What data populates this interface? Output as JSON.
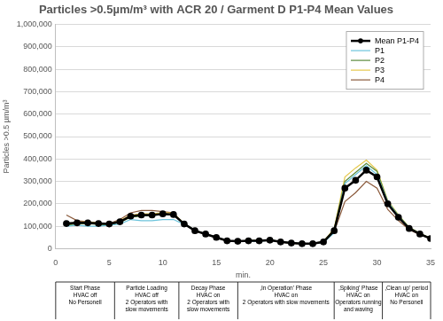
{
  "chart_data": {
    "type": "line",
    "title": "Particles >0.5µm/m³ with ACR 20 / Garment D P1-P4 Mean Values",
    "x_label": "min.",
    "y_label": "Particles >0.5 µm/m³",
    "x": [
      1,
      2,
      3,
      4,
      5,
      6,
      7,
      8,
      9,
      10,
      11,
      12,
      13,
      14,
      15,
      16,
      17,
      18,
      19,
      20,
      21,
      22,
      23,
      24,
      25,
      26,
      27,
      28,
      29,
      30,
      31,
      32,
      33,
      34,
      35
    ],
    "series": [
      {
        "name": "Mean P1-P4",
        "color": "#000000",
        "marker": "circle",
        "line_style": "solid",
        "values": [
          112000,
          115000,
          115000,
          112000,
          110000,
          120000,
          145000,
          150000,
          150000,
          155000,
          152000,
          110000,
          80000,
          65000,
          50000,
          35000,
          33000,
          35000,
          35000,
          38000,
          30000,
          25000,
          22000,
          22000,
          30000,
          80000,
          270000,
          305000,
          350000,
          320000,
          200000,
          140000,
          90000,
          65000,
          45000
        ]
      },
      {
        "name": "P1",
        "color": "#6cc4dc",
        "marker": "none",
        "line_style": "solid",
        "values": [
          100000,
          105000,
          100000,
          100000,
          105000,
          110000,
          130000,
          125000,
          125000,
          130000,
          130000,
          108000,
          80000,
          65000,
          50000,
          35000,
          32000,
          33000,
          33000,
          37000,
          30000,
          25000,
          22000,
          22000,
          28000,
          70000,
          290000,
          330000,
          370000,
          330000,
          210000,
          145000,
          92000,
          65000,
          45000
        ]
      },
      {
        "name": "P2",
        "color": "#5a8a3c",
        "marker": "none",
        "line_style": "solid",
        "values": [
          105000,
          110000,
          112000,
          108000,
          105000,
          118000,
          140000,
          145000,
          148000,
          152000,
          150000,
          112000,
          82000,
          66000,
          52000,
          36000,
          34000,
          36000,
          36000,
          40000,
          31000,
          26000,
          23000,
          23000,
          32000,
          85000,
          300000,
          340000,
          380000,
          345000,
          210000,
          148000,
          95000,
          68000,
          47000
        ]
      },
      {
        "name": "P3",
        "color": "#e6c84a",
        "marker": "none",
        "line_style": "solid",
        "values": [
          110000,
          118000,
          120000,
          115000,
          110000,
          125000,
          150000,
          155000,
          155000,
          160000,
          158000,
          112000,
          80000,
          64000,
          50000,
          36000,
          34000,
          36000,
          36000,
          39000,
          30000,
          25000,
          22000,
          22000,
          32000,
          90000,
          320000,
          360000,
          395000,
          350000,
          215000,
          150000,
          95000,
          68000,
          46000
        ]
      },
      {
        "name": "P4",
        "color": "#8b5a3c",
        "marker": "none",
        "line_style": "solid",
        "values": [
          150000,
          125000,
          120000,
          115000,
          112000,
          130000,
          160000,
          170000,
          170000,
          165000,
          160000,
          108000,
          78000,
          64000,
          48000,
          34000,
          32000,
          34000,
          34000,
          36000,
          29000,
          24000,
          21000,
          21000,
          28000,
          75000,
          210000,
          250000,
          300000,
          270000,
          175000,
          125000,
          85000,
          62000,
          44000
        ]
      }
    ],
    "xlim": [
      0,
      35
    ],
    "xticks": [
      0,
      5,
      10,
      15,
      20,
      25,
      30,
      35
    ],
    "ylim": [
      0,
      1000000
    ],
    "yticks": [
      0,
      {
        "value": 100000,
        "label": "100,000"
      },
      {
        "value": 200000,
        "label": "200,000"
      },
      {
        "value": 300000,
        "label": "300,000"
      },
      {
        "value": 400000,
        "label": "400,000"
      },
      {
        "value": 500000,
        "label": "500,000"
      },
      {
        "value": 600000,
        "label": "600,000"
      },
      {
        "value": 700000,
        "label": "700,000"
      },
      {
        "value": 800000,
        "label": "800,000"
      },
      {
        "value": 900000,
        "label": "900,000"
      },
      {
        "value": 1000000,
        "label": "1,000,000"
      }
    ],
    "grid": "y",
    "legend": "upper right",
    "phases": [
      {
        "x0": 0,
        "x1": 5.5,
        "label": [
          "Start Phase",
          "HVAC off",
          "No Personell"
        ]
      },
      {
        "x0": 5.5,
        "x1": 11.5,
        "label": [
          "Particle Loading",
          "HVAC off",
          "2 Operators with",
          "slow movements"
        ]
      },
      {
        "x0": 11.5,
        "x1": 17,
        "label": [
          "Decay Phase",
          "HVAC on",
          "2 Operators with",
          "slow movements"
        ]
      },
      {
        "x0": 17,
        "x1": 26,
        "label": [
          "‚In Operation' Phase",
          "HVAC on",
          "2 Operators with slow movements"
        ]
      },
      {
        "x0": 26,
        "x1": 30.5,
        "label": [
          "‚Spiking' Phase",
          "HVAC on",
          "Operators running",
          "and waving"
        ]
      },
      {
        "x0": 30.5,
        "x1": 35,
        "label": [
          "‚Clean up' period",
          "HVAC on",
          "No Personell"
        ]
      }
    ]
  }
}
